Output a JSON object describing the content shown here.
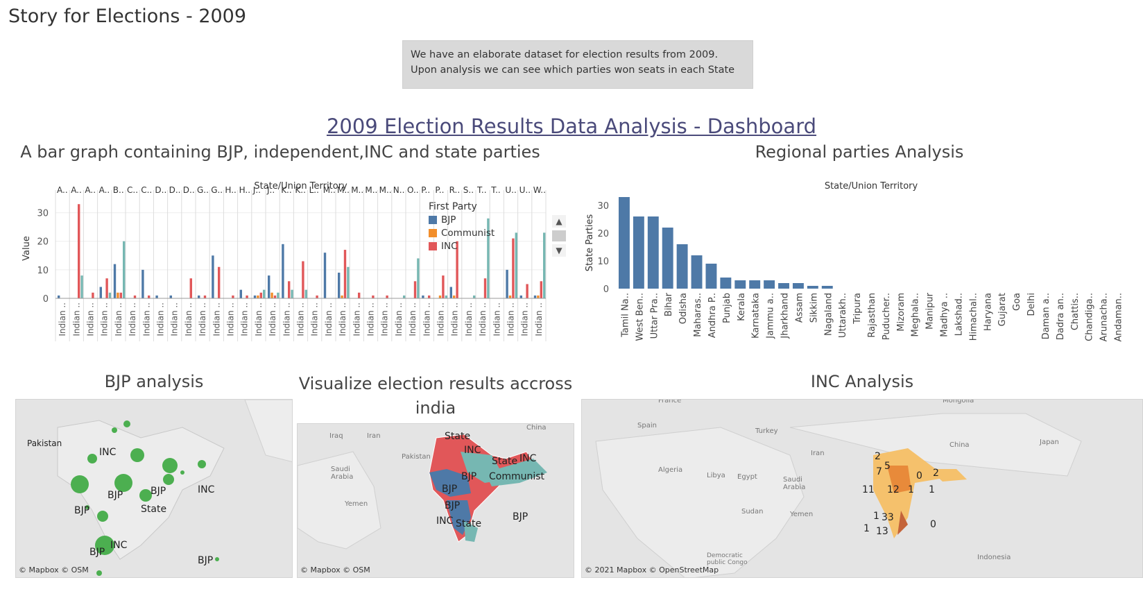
{
  "page_title": "Story for Elections - 2009",
  "caption": "We have an elaborate dataset for election results from 2009. Upon analysis we can see which parties won seats in each State",
  "dashboard_title": "2009 Election Results Data Analysis - Dashboard",
  "panels": {
    "bar_title": "A bar graph containing BJP, independent,INC and state parties",
    "regional_title": "Regional parties Analysis",
    "bjp_title": "BJP analysis",
    "visualize_title": "Visualize election results accross india",
    "inc_title": "INC Analysis"
  },
  "colors": {
    "bjp": "#4e79a7",
    "communist": "#f28e2b",
    "inc": "#e15759",
    "state": "#76b7b2",
    "regional": "#4e79a7"
  },
  "legend": {
    "title": "First Party",
    "items": [
      {
        "label": "BJP",
        "color": "#4e79a7"
      },
      {
        "label": "Communist",
        "color": "#f28e2b"
      },
      {
        "label": "INC",
        "color": "#e15759"
      }
    ]
  },
  "chart_data": [
    {
      "type": "bar",
      "header": "State/Union Territory",
      "ylabel": "Value",
      "ylim": [
        0,
        35
      ],
      "yticks": [
        0,
        10,
        20,
        30
      ],
      "top_labels": [
        "A..",
        "A..",
        "A..",
        "A..",
        "B..",
        "C..",
        "C..",
        "D..",
        "D..",
        "D..",
        "G..",
        "G..",
        "H..",
        "H..",
        "J..",
        "J..",
        "K..",
        "K..",
        "L..",
        "M..",
        "M..",
        "M..",
        "M..",
        "M..",
        "N..",
        "O..",
        "P..",
        "P..",
        "R..",
        "S..",
        "T..",
        "T..",
        "U..",
        "U..",
        "W.."
      ],
      "x_tick_label": "Indian ..",
      "series": [
        {
          "name": "BJP",
          "values": [
            1,
            0,
            0,
            4,
            12,
            0,
            10,
            1,
            1,
            0,
            1,
            15,
            0,
            3,
            1,
            8,
            19,
            0,
            0,
            16,
            9,
            0,
            0,
            0,
            0,
            0,
            1,
            0,
            4,
            0,
            0,
            0,
            10,
            1,
            1
          ]
        },
        {
          "name": "Communist",
          "values": [
            0,
            0,
            0,
            0,
            2,
            0,
            0,
            0,
            0,
            0,
            0,
            0,
            0,
            0,
            1,
            2,
            0,
            0,
            0,
            0,
            1,
            0,
            0,
            0,
            0,
            0,
            0,
            1,
            1,
            0,
            0,
            0,
            1,
            0,
            1
          ]
        },
        {
          "name": "INC",
          "values": [
            0,
            33,
            2,
            7,
            2,
            1,
            1,
            0,
            0,
            7,
            1,
            11,
            1,
            1,
            2,
            1,
            6,
            13,
            1,
            0,
            17,
            2,
            1,
            1,
            0,
            6,
            1,
            8,
            20,
            0,
            7,
            0,
            21,
            5,
            6
          ]
        },
        {
          "name": "",
          "values": [
            0,
            8,
            0,
            2,
            20,
            0,
            0,
            0,
            0,
            0,
            0,
            0,
            0,
            0,
            3,
            2,
            3,
            3,
            0,
            0,
            11,
            0,
            0,
            0,
            1,
            14,
            0,
            1,
            0,
            1,
            28,
            0,
            23,
            0,
            23
          ]
        }
      ]
    },
    {
      "type": "bar",
      "header": "State/Union Territory",
      "ylabel": "State Parties",
      "ylim": [
        0,
        33
      ],
      "yticks": [
        0,
        10,
        20,
        30
      ],
      "categories": [
        "Tamil Na..",
        "West Ben..",
        "Uttar Pra..",
        "Bihar",
        "Odisha",
        "Maharas..",
        "Andhra P..",
        "Punjab",
        "Kerala",
        "Karnataka",
        "Jammu a..",
        "Jharkhand",
        "Assam",
        "Sikkim",
        "Nagaland",
        "Uttarakh..",
        "Tripura",
        "Rajasthan",
        "Puducher..",
        "Mizoram",
        "Meghala..",
        "Manipur",
        "Madhya ..",
        "Lakshad..",
        "Himachal..",
        "Haryana",
        "Gujarat",
        "Goa",
        "Delhi",
        "Daman a..",
        "Dadra an..",
        "Chattis..",
        "Chandiga..",
        "Arunacha..",
        "Andaman.."
      ],
      "values": [
        33,
        26,
        26,
        22,
        16,
        12,
        9,
        4,
        3,
        3,
        3,
        2,
        2,
        1,
        1,
        0,
        0,
        0,
        0,
        0,
        0,
        0,
        0,
        0,
        0,
        0,
        0,
        0,
        0,
        0,
        0,
        0,
        0,
        0,
        0
      ]
    }
  ],
  "maps": {
    "bjp": {
      "credit": "© Mapbox © OSM",
      "country": "Pakistan",
      "labels": [
        "INC",
        "BJP",
        "BJP",
        "BJP",
        "State",
        "INC",
        "BJP",
        "INC",
        "BJP"
      ]
    },
    "visualize": {
      "credit": "© Mapbox © OSM",
      "places": [
        "Iraq",
        "Iran",
        "Saudi Arabia",
        "Yemen",
        "Pakistan",
        "China"
      ],
      "labels": [
        "State",
        "INC",
        "State",
        "INC",
        "BJP",
        "Communist",
        "BJP",
        "BJP",
        "INC",
        "State",
        "BJP"
      ]
    },
    "inc": {
      "credit": "© 2021 Mapbox © OpenStreetMap",
      "places": [
        "France",
        "Spain",
        "Turkey",
        "Iran",
        "Algeria",
        "Libya",
        "Egypt",
        "Saudi Arabia",
        "Sudan",
        "Yemen",
        "Mongolia",
        "China",
        "Japan",
        "Democratic public Congo",
        "Indonesia"
      ],
      "values": [
        "2",
        "7",
        "5",
        "0",
        "2",
        "11",
        "12",
        "1",
        "1",
        "1",
        "33",
        "1",
        "13",
        "0"
      ]
    }
  }
}
